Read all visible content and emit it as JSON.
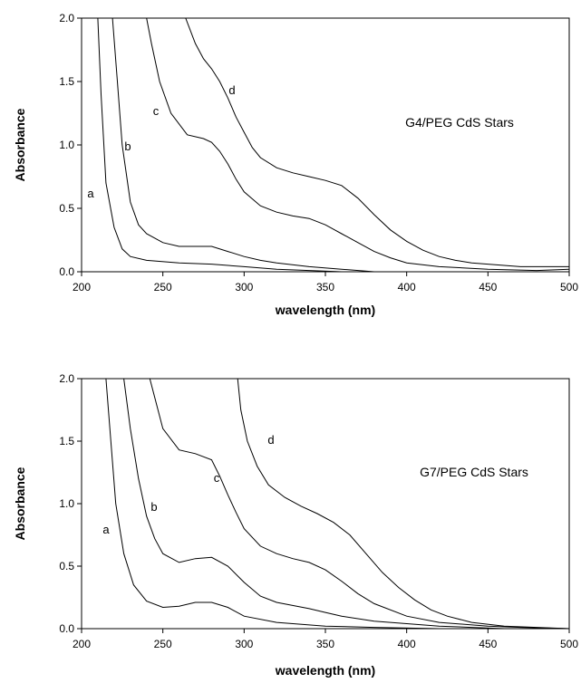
{
  "chart_data": [
    {
      "type": "line",
      "annotation": "G4/PEG CdS Stars",
      "xlabel": "wavelength (nm)",
      "ylabel": "Absorbance",
      "xlim": [
        200,
        500
      ],
      "ylim": [
        0,
        2.0
      ],
      "xticks": [
        "200",
        "250",
        "300",
        "350",
        "400",
        "450",
        "500"
      ],
      "yticks": [
        "0.0",
        "0.5",
        "1.0",
        "1.5",
        "2.0"
      ],
      "grid": false,
      "series": [
        {
          "name": "a",
          "points": [
            [
              210,
              2.0
            ],
            [
              212,
              1.4
            ],
            [
              215,
              0.7
            ],
            [
              220,
              0.35
            ],
            [
              225,
              0.18
            ],
            [
              230,
              0.12
            ],
            [
              240,
              0.09
            ],
            [
              260,
              0.07
            ],
            [
              280,
              0.06
            ],
            [
              300,
              0.04
            ],
            [
              320,
              0.02
            ],
            [
              340,
              0.01
            ],
            [
              360,
              0.0
            ],
            [
              400,
              0.0
            ],
            [
              450,
              0.0
            ],
            [
              500,
              0.0
            ]
          ]
        },
        {
          "name": "b",
          "points": [
            [
              219,
              2.0
            ],
            [
              222,
              1.5
            ],
            [
              225,
              1.0
            ],
            [
              230,
              0.55
            ],
            [
              235,
              0.37
            ],
            [
              240,
              0.3
            ],
            [
              250,
              0.23
            ],
            [
              260,
              0.2
            ],
            [
              270,
              0.2
            ],
            [
              280,
              0.2
            ],
            [
              290,
              0.16
            ],
            [
              300,
              0.12
            ],
            [
              310,
              0.09
            ],
            [
              320,
              0.07
            ],
            [
              340,
              0.04
            ],
            [
              360,
              0.02
            ],
            [
              380,
              0.0
            ],
            [
              400,
              0.0
            ],
            [
              450,
              0.0
            ],
            [
              500,
              0.0
            ]
          ]
        },
        {
          "name": "c",
          "points": [
            [
              240,
              2.0
            ],
            [
              243,
              1.8
            ],
            [
              248,
              1.5
            ],
            [
              255,
              1.25
            ],
            [
              265,
              1.08
            ],
            [
              275,
              1.05
            ],
            [
              280,
              1.02
            ],
            [
              285,
              0.95
            ],
            [
              290,
              0.85
            ],
            [
              295,
              0.73
            ],
            [
              300,
              0.63
            ],
            [
              310,
              0.52
            ],
            [
              320,
              0.47
            ],
            [
              330,
              0.44
            ],
            [
              340,
              0.42
            ],
            [
              350,
              0.37
            ],
            [
              360,
              0.3
            ],
            [
              370,
              0.23
            ],
            [
              380,
              0.16
            ],
            [
              390,
              0.11
            ],
            [
              400,
              0.07
            ],
            [
              420,
              0.04
            ],
            [
              450,
              0.02
            ],
            [
              480,
              0.01
            ],
            [
              500,
              0.02
            ]
          ]
        },
        {
          "name": "d",
          "points": [
            [
              264,
              2.0
            ],
            [
              270,
              1.8
            ],
            [
              275,
              1.68
            ],
            [
              280,
              1.6
            ],
            [
              285,
              1.5
            ],
            [
              290,
              1.37
            ],
            [
              295,
              1.22
            ],
            [
              300,
              1.1
            ],
            [
              305,
              0.98
            ],
            [
              310,
              0.9
            ],
            [
              320,
              0.82
            ],
            [
              330,
              0.78
            ],
            [
              340,
              0.75
            ],
            [
              350,
              0.72
            ],
            [
              360,
              0.68
            ],
            [
              370,
              0.58
            ],
            [
              380,
              0.45
            ],
            [
              390,
              0.33
            ],
            [
              400,
              0.24
            ],
            [
              410,
              0.17
            ],
            [
              420,
              0.12
            ],
            [
              430,
              0.09
            ],
            [
              440,
              0.07
            ],
            [
              450,
              0.06
            ],
            [
              470,
              0.04
            ],
            [
              500,
              0.04
            ]
          ]
        }
      ]
    },
    {
      "type": "line",
      "annotation": "G7/PEG CdS Stars",
      "xlabel": "wavelength (nm)",
      "ylabel": "Absorbance",
      "xlim": [
        200,
        500
      ],
      "ylim": [
        0,
        2.0
      ],
      "xticks": [
        "200",
        "250",
        "300",
        "350",
        "400",
        "450",
        "500"
      ],
      "yticks": [
        "0.0",
        "0.5",
        "1.0",
        "1.5",
        "2.0"
      ],
      "grid": false,
      "series": [
        {
          "name": "a",
          "points": [
            [
              215,
              2.0
            ],
            [
              218,
              1.5
            ],
            [
              221,
              1.0
            ],
            [
              226,
              0.6
            ],
            [
              232,
              0.35
            ],
            [
              240,
              0.22
            ],
            [
              250,
              0.17
            ],
            [
              260,
              0.18
            ],
            [
              270,
              0.21
            ],
            [
              280,
              0.21
            ],
            [
              290,
              0.17
            ],
            [
              300,
              0.1
            ],
            [
              320,
              0.05
            ],
            [
              350,
              0.02
            ],
            [
              380,
              0.01
            ],
            [
              420,
              0.0
            ],
            [
              450,
              0.0
            ],
            [
              500,
              0.0
            ]
          ]
        },
        {
          "name": "b",
          "points": [
            [
              226,
              2.0
            ],
            [
              230,
              1.6
            ],
            [
              235,
              1.2
            ],
            [
              240,
              0.9
            ],
            [
              245,
              0.72
            ],
            [
              250,
              0.6
            ],
            [
              260,
              0.53
            ],
            [
              270,
              0.56
            ],
            [
              280,
              0.57
            ],
            [
              290,
              0.5
            ],
            [
              300,
              0.37
            ],
            [
              310,
              0.26
            ],
            [
              320,
              0.21
            ],
            [
              340,
              0.16
            ],
            [
              350,
              0.13
            ],
            [
              360,
              0.1
            ],
            [
              380,
              0.06
            ],
            [
              400,
              0.04
            ],
            [
              420,
              0.02
            ],
            [
              440,
              0.01
            ],
            [
              460,
              0.0
            ],
            [
              500,
              0.0
            ]
          ]
        },
        {
          "name": "c",
          "points": [
            [
              242,
              2.0
            ],
            [
              246,
              1.8
            ],
            [
              250,
              1.6
            ],
            [
              260,
              1.43
            ],
            [
              270,
              1.4
            ],
            [
              280,
              1.35
            ],
            [
              285,
              1.22
            ],
            [
              290,
              1.07
            ],
            [
              295,
              0.93
            ],
            [
              300,
              0.8
            ],
            [
              310,
              0.66
            ],
            [
              320,
              0.6
            ],
            [
              330,
              0.56
            ],
            [
              340,
              0.53
            ],
            [
              350,
              0.47
            ],
            [
              360,
              0.38
            ],
            [
              370,
              0.28
            ],
            [
              380,
              0.2
            ],
            [
              400,
              0.1
            ],
            [
              420,
              0.05
            ],
            [
              450,
              0.02
            ],
            [
              470,
              0.01
            ],
            [
              500,
              0.0
            ]
          ]
        },
        {
          "name": "d",
          "points": [
            [
              296,
              2.0
            ],
            [
              298,
              1.75
            ],
            [
              302,
              1.5
            ],
            [
              308,
              1.3
            ],
            [
              315,
              1.15
            ],
            [
              325,
              1.05
            ],
            [
              335,
              0.98
            ],
            [
              345,
              0.92
            ],
            [
              355,
              0.85
            ],
            [
              365,
              0.75
            ],
            [
              375,
              0.6
            ],
            [
              385,
              0.45
            ],
            [
              395,
              0.33
            ],
            [
              405,
              0.23
            ],
            [
              415,
              0.15
            ],
            [
              425,
              0.1
            ],
            [
              440,
              0.05
            ],
            [
              460,
              0.02
            ],
            [
              480,
              0.01
            ],
            [
              500,
              0.0
            ]
          ]
        }
      ]
    }
  ]
}
